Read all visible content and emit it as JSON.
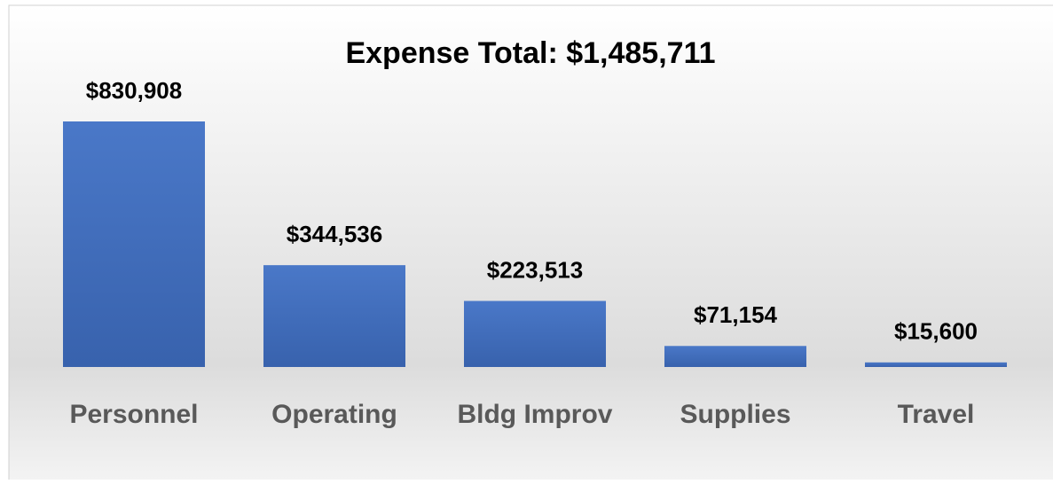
{
  "chart_data": {
    "type": "bar",
    "title": "Expense Total: $1,485,711",
    "categories": [
      "Personnel",
      "Operating",
      "Bldg Improv",
      "Supplies",
      "Travel"
    ],
    "values": [
      830908,
      344536,
      223513,
      71154,
      15600
    ],
    "value_labels": [
      "$830,908",
      "$344,536",
      "$223,513",
      "$71,154",
      "$15,600"
    ],
    "color": "#4472c4"
  }
}
